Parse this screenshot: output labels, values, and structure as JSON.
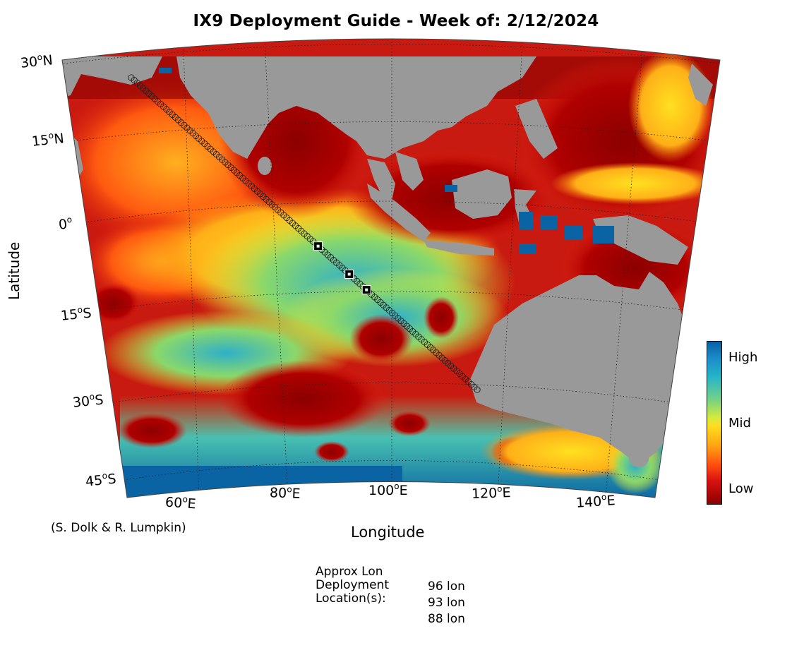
{
  "title": "IX9 Deployment Guide - Week of: 2/12/2024",
  "axes": {
    "ylabel": "Latitude",
    "xlabel": "Longitude",
    "lat_ticks": [
      {
        "deg": "30",
        "hemi": "N"
      },
      {
        "deg": "15",
        "hemi": "N"
      },
      {
        "deg": "0",
        "hemi": ""
      },
      {
        "deg": "15",
        "hemi": "S"
      },
      {
        "deg": "30",
        "hemi": "S"
      },
      {
        "deg": "45",
        "hemi": "S"
      }
    ],
    "lon_ticks": [
      {
        "deg": "60",
        "hemi": "E"
      },
      {
        "deg": "80",
        "hemi": "E"
      },
      {
        "deg": "100",
        "hemi": "E"
      },
      {
        "deg": "120",
        "hemi": "E"
      },
      {
        "deg": "140",
        "hemi": "E"
      }
    ]
  },
  "colorbar": {
    "high": "High",
    "mid": "Mid",
    "low": "Low"
  },
  "credit": "(S. Dolk & R. Lumpkin)",
  "deployment": {
    "heading_line1": "Approx Lon",
    "heading_line2": "Deployment",
    "heading_line3": "Location(s):",
    "locations": [
      "96 lon",
      "93 lon",
      "88 lon"
    ]
  },
  "colors": {
    "land": "#999999",
    "low": "#8c0000",
    "mid": "#ffdd20",
    "high": "#0a5fa3"
  }
}
